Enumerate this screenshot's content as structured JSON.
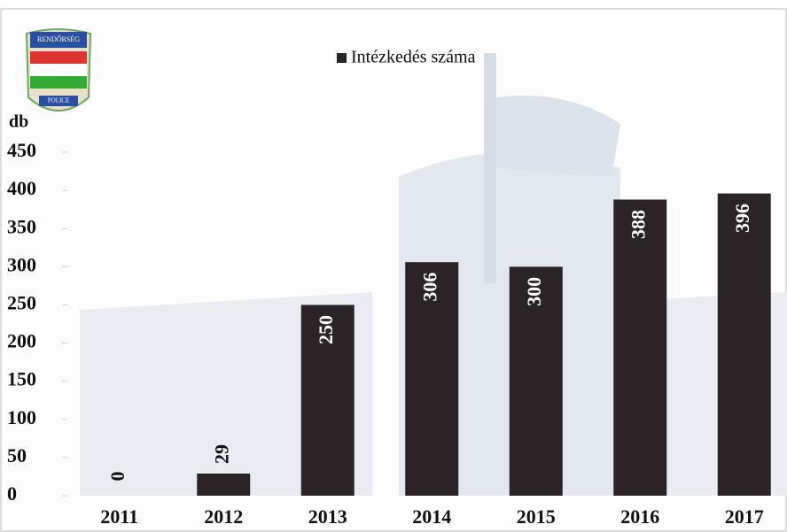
{
  "logo": {
    "top": "RENDŐRSÉG",
    "bottom": "POLICE"
  },
  "chart_data": {
    "type": "bar",
    "y_label": "db",
    "categories": [
      "2011",
      "2012",
      "2013",
      "2014",
      "2015",
      "2016",
      "2017"
    ],
    "series": [
      {
        "name": "Intézkedés száma",
        "color": "#2b2426",
        "values": [
          0,
          29,
          250,
          306,
          300,
          388,
          396
        ]
      }
    ],
    "ylim": [
      0,
      450
    ],
    "yticks": [
      0,
      50,
      100,
      150,
      200,
      250,
      300,
      350,
      400,
      450
    ],
    "grid": false,
    "legend": "top"
  }
}
